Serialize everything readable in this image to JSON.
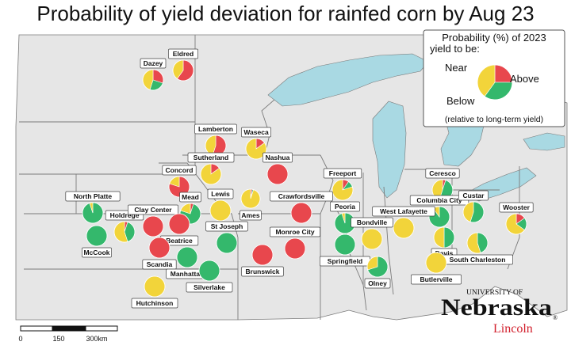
{
  "title": "Probability of yield deviation for rainfed corn by Aug 23",
  "colors": {
    "below": "#e8474d",
    "near": "#f2d43a",
    "above": "#34b86c",
    "land": "#e6e6e6",
    "water": "#a9d9e3",
    "border": "#7a7a7a"
  },
  "legend": {
    "heading_line1": "Probability (%) of 2023",
    "heading_line2": "yield to be:",
    "near": "Near",
    "above": "Above",
    "below": "Below",
    "note": "(relative to long-term yield)",
    "example": {
      "below": 25,
      "near": 40,
      "above": 35
    }
  },
  "sites": [
    {
      "name": "Eldred",
      "below": 60,
      "near": 40,
      "above": 0
    },
    {
      "name": "Dazey",
      "below": 30,
      "near": 45,
      "above": 25
    },
    {
      "name": "Lamberton",
      "below": 55,
      "near": 45,
      "above": 0
    },
    {
      "name": "Waseca",
      "below": 15,
      "near": 85,
      "above": 0
    },
    {
      "name": "Sutherland",
      "below": 15,
      "near": 85,
      "above": 0
    },
    {
      "name": "Nashua",
      "below": 100,
      "near": 0,
      "above": 0
    },
    {
      "name": "Concord",
      "below": 80,
      "near": 20,
      "above": 0
    },
    {
      "name": "Freeport",
      "below": 10,
      "near": 80,
      "above": 10
    },
    {
      "name": "Ceresco",
      "below": 5,
      "near": 45,
      "above": 50
    },
    {
      "name": "North Platte",
      "below": 0,
      "near": 5,
      "above": 95
    },
    {
      "name": "Mead",
      "below": 5,
      "near": 20,
      "above": 75
    },
    {
      "name": "Lewis",
      "below": 0,
      "near": 100,
      "above": 0
    },
    {
      "name": "Ames",
      "below": 3,
      "near": 95,
      "above": 2
    },
    {
      "name": "Crawfordsville",
      "below": 100,
      "near": 0,
      "above": 0
    },
    {
      "name": "Columbia City",
      "below": 0,
      "near": 10,
      "above": 90
    },
    {
      "name": "Custar",
      "below": 0,
      "near": 45,
      "above": 55
    },
    {
      "name": "Holdrege",
      "below": 5,
      "near": 55,
      "above": 40
    },
    {
      "name": "Clay Center",
      "below": 100,
      "near": 0,
      "above": 0
    },
    {
      "name": "Peoria",
      "below": 0,
      "near": 5,
      "above": 95
    },
    {
      "name": "West Lafayette",
      "below": 0,
      "near": 100,
      "above": 0
    },
    {
      "name": "Wooster",
      "below": 15,
      "near": 65,
      "above": 20
    },
    {
      "name": "Beatrice",
      "below": 100,
      "near": 0,
      "above": 0
    },
    {
      "name": "St Joseph",
      "below": 0,
      "near": 0,
      "above": 100
    },
    {
      "name": "McCook",
      "below": 0,
      "near": 0,
      "above": 100
    },
    {
      "name": "Bondville",
      "below": 0,
      "near": 100,
      "above": 0
    },
    {
      "name": "Monroe City",
      "below": 100,
      "near": 0,
      "above": 0
    },
    {
      "name": "Davis",
      "below": 0,
      "near": 50,
      "above": 50
    },
    {
      "name": "Scandia",
      "below": 100,
      "near": 0,
      "above": 0
    },
    {
      "name": "Manhattan",
      "below": 0,
      "near": 0,
      "above": 100
    },
    {
      "name": "Silverlake",
      "below": 0,
      "near": 0,
      "above": 100
    },
    {
      "name": "Brunswick",
      "below": 100,
      "near": 0,
      "above": 0
    },
    {
      "name": "Springfield",
      "below": 0,
      "near": 0,
      "above": 100
    },
    {
      "name": "South Charleston",
      "below": 0,
      "near": 55,
      "above": 45
    },
    {
      "name": "Olney",
      "below": 0,
      "near": 30,
      "above": 70
    },
    {
      "name": "Butlerville",
      "below": 0,
      "near": 100,
      "above": 0
    },
    {
      "name": "Hutchinson",
      "below": 0,
      "near": 100,
      "above": 0
    }
  ],
  "scale_bar": {
    "tick_0": "0",
    "tick_1": "150",
    "tick_2": "300km"
  },
  "logo": {
    "line1": "UNIVERSITY OF",
    "line2": "Nebraska",
    "line3": "Lincoln",
    "mark": "®"
  }
}
